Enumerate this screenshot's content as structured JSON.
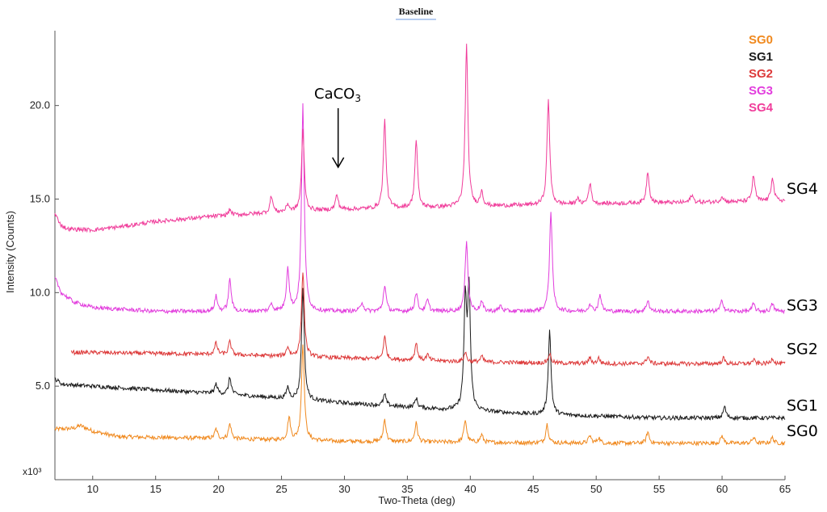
{
  "chart_data": {
    "type": "line",
    "title": "Baseline",
    "xlabel": "Two-Theta (deg)",
    "ylabel": "Intensity (Counts)",
    "y_multiplier": "x10³",
    "xlim": [
      7,
      65
    ],
    "ylim": [
      0,
      24
    ],
    "x_ticks": [
      "10",
      "15",
      "20",
      "25",
      "30",
      "35",
      "40",
      "45",
      "50",
      "55",
      "60",
      "65"
    ],
    "y_ticks": [
      "5.0",
      "10.0",
      "15.0",
      "20.0"
    ],
    "grid": false,
    "legend_position": "top-right",
    "annotation": {
      "base": "CaCO",
      "subscript": "3",
      "x": 29.5,
      "y": 16.7
    },
    "series": [
      {
        "name": "SG0",
        "color": "#f0891e",
        "right_label": "SG0",
        "x_start": 7,
        "x_end": 65,
        "baseline": [
          [
            7,
            2.7
          ],
          [
            8.5,
            2.75
          ],
          [
            9,
            2.9
          ],
          [
            10,
            2.6
          ],
          [
            12,
            2.3
          ],
          [
            20,
            2.2
          ],
          [
            30,
            2.05
          ],
          [
            40,
            2.0
          ],
          [
            50,
            1.95
          ],
          [
            60,
            1.95
          ],
          [
            65,
            1.95
          ]
        ],
        "peaks": [
          [
            19.8,
            0.5
          ],
          [
            20.9,
            0.8
          ],
          [
            25.6,
            1.2
          ],
          [
            26.7,
            5.2
          ],
          [
            33.2,
            1.2
          ],
          [
            35.7,
            1.0
          ],
          [
            39.6,
            1.2
          ],
          [
            40.9,
            0.4
          ],
          [
            46.1,
            1.0
          ],
          [
            49.5,
            0.4
          ],
          [
            50.2,
            0.3
          ],
          [
            54.1,
            0.6
          ],
          [
            60.0,
            0.4
          ],
          [
            62.5,
            0.3
          ],
          [
            64.0,
            0.3
          ]
        ]
      },
      {
        "name": "SG1",
        "color": "#1a1a1a",
        "right_label": "SG1",
        "x_start": 7,
        "x_end": 65,
        "baseline": [
          [
            7,
            5.4
          ],
          [
            7.6,
            5.1
          ],
          [
            10,
            5.0
          ],
          [
            20,
            4.6
          ],
          [
            30,
            4.1
          ],
          [
            38,
            3.75
          ],
          [
            45,
            3.5
          ],
          [
            55,
            3.3
          ],
          [
            65,
            3.3
          ]
        ],
        "peaks": [
          [
            19.8,
            0.5
          ],
          [
            20.9,
            0.9
          ],
          [
            25.5,
            0.6
          ],
          [
            26.7,
            6.0
          ],
          [
            33.2,
            0.6
          ],
          [
            35.7,
            0.5
          ],
          [
            39.6,
            5.6
          ],
          [
            39.9,
            6.2
          ],
          [
            46.3,
            4.5
          ],
          [
            60.2,
            0.6
          ]
        ]
      },
      {
        "name": "SG2",
        "color": "#dd3a3a",
        "right_label": "SG2",
        "x_start": 8.3,
        "x_end": 65,
        "baseline": [
          [
            8.3,
            6.8
          ],
          [
            10,
            6.8
          ],
          [
            20,
            6.7
          ],
          [
            30,
            6.5
          ],
          [
            40,
            6.3
          ],
          [
            50,
            6.2
          ],
          [
            65,
            6.2
          ]
        ],
        "peaks": [
          [
            19.8,
            0.6
          ],
          [
            20.9,
            0.7
          ],
          [
            25.5,
            0.5
          ],
          [
            26.7,
            4.6
          ],
          [
            33.2,
            1.2
          ],
          [
            35.7,
            0.9
          ],
          [
            36.6,
            0.3
          ],
          [
            39.6,
            0.5
          ],
          [
            40.9,
            0.3
          ],
          [
            46.3,
            0.5
          ],
          [
            49.5,
            0.3
          ],
          [
            50.2,
            0.3
          ],
          [
            54.1,
            0.4
          ],
          [
            60.1,
            0.3
          ],
          [
            62.5,
            0.2
          ],
          [
            64.0,
            0.3
          ]
        ]
      },
      {
        "name": "SG3",
        "color": "#e23ddd",
        "right_label": "SG3",
        "x_start": 7,
        "x_end": 65,
        "baseline": [
          [
            7,
            10.8
          ],
          [
            7.5,
            10.0
          ],
          [
            8.5,
            9.5
          ],
          [
            10,
            9.2
          ],
          [
            15,
            9.0
          ],
          [
            30,
            9.0
          ],
          [
            40,
            9.0
          ],
          [
            55,
            9.0
          ],
          [
            65,
            9.0
          ]
        ],
        "peaks": [
          [
            19.8,
            0.8
          ],
          [
            20.9,
            1.7
          ],
          [
            24.2,
            0.4
          ],
          [
            25.5,
            2.3
          ],
          [
            26.7,
            11.0
          ],
          [
            31.4,
            0.5
          ],
          [
            33.2,
            1.4
          ],
          [
            35.7,
            1.0
          ],
          [
            36.6,
            0.6
          ],
          [
            39.7,
            3.8
          ],
          [
            40.9,
            0.5
          ],
          [
            42.4,
            0.3
          ],
          [
            46.4,
            5.3
          ],
          [
            49.5,
            0.4
          ],
          [
            50.3,
            0.9
          ],
          [
            54.1,
            0.6
          ],
          [
            60.0,
            0.6
          ],
          [
            62.5,
            0.4
          ],
          [
            64.0,
            0.4
          ]
        ]
      },
      {
        "name": "SG4",
        "color": "#f03c9a",
        "right_label": "SG4",
        "x_start": 7,
        "x_end": 65,
        "baseline": [
          [
            7,
            14.2
          ],
          [
            7.5,
            13.6
          ],
          [
            8,
            13.4
          ],
          [
            10,
            13.35
          ],
          [
            12,
            13.5
          ],
          [
            15,
            13.8
          ],
          [
            20,
            14.1
          ],
          [
            25,
            14.3
          ],
          [
            30,
            14.45
          ],
          [
            40,
            14.6
          ],
          [
            50,
            14.75
          ],
          [
            60,
            14.85
          ],
          [
            65,
            14.9
          ]
        ],
        "peaks": [
          [
            20.9,
            0.3
          ],
          [
            24.2,
            0.9
          ],
          [
            25.5,
            0.4
          ],
          [
            26.7,
            4.3
          ],
          [
            29.4,
            0.8
          ],
          [
            33.2,
            4.7
          ],
          [
            35.7,
            3.6
          ],
          [
            39.7,
            8.6
          ],
          [
            40.9,
            0.8
          ],
          [
            46.2,
            5.6
          ],
          [
            48.5,
            0.3
          ],
          [
            49.5,
            1.1
          ],
          [
            54.1,
            1.7
          ],
          [
            57.6,
            0.4
          ],
          [
            60.0,
            0.3
          ],
          [
            62.5,
            1.4
          ],
          [
            64.0,
            1.3
          ]
        ]
      }
    ]
  }
}
